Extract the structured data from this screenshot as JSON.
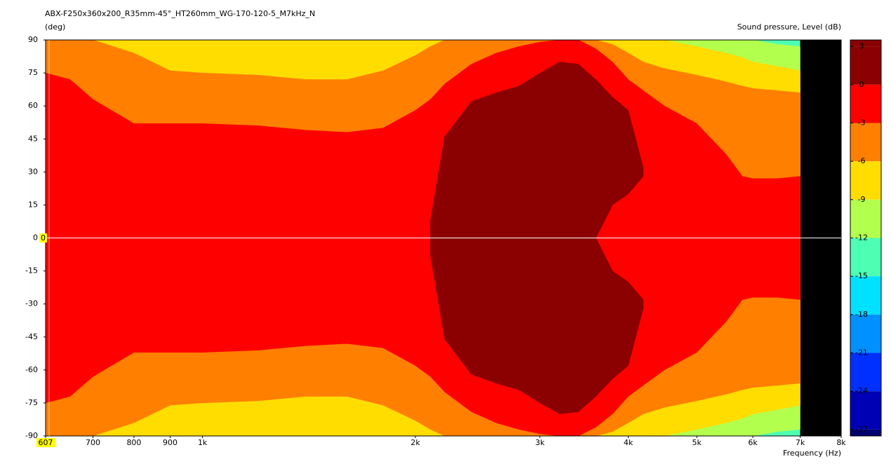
{
  "chart_data": {
    "type": "contour",
    "title": "ABX-F250x360x200_R35mm-45°_HT260mm_WG-170-120-5_M7kHz_N",
    "y_label": "(deg)",
    "x_label": "Frequency  (Hz)",
    "colorbar_label": "Sound pressure, Level  (dB)",
    "log_x": true,
    "symmetric": true,
    "nodata_color": "#000000",
    "xlim": [
      600,
      8000
    ],
    "xticks": [
      600,
      700,
      800,
      900,
      {
        "value": 1000,
        "label": "1k"
      },
      {
        "value": 2000,
        "label": "2k"
      },
      {
        "value": 3000,
        "label": "3k"
      },
      {
        "value": 4000,
        "label": "4k"
      },
      {
        "value": 5000,
        "label": "5k"
      },
      {
        "value": 6000,
        "label": "6k"
      },
      {
        "value": 7000,
        "label": "7k"
      },
      {
        "value": 8000,
        "label": "8k"
      }
    ],
    "ylim": [
      -90,
      90
    ],
    "yticks": [
      90,
      75,
      60,
      45,
      30,
      15,
      0,
      -15,
      -30,
      -45,
      -60,
      -75,
      -90
    ],
    "x": [
      600,
      650,
      700,
      800,
      900,
      1000,
      1200,
      1400,
      1600,
      1800,
      2000,
      2100,
      2200,
      2400,
      2600,
      2800,
      3000,
      3200,
      3400,
      3600,
      3800,
      4000,
      4200,
      4500,
      5000,
      5500,
      5800,
      6000,
      6500,
      7000
    ],
    "contours": [
      {
        "level": -12,
        "upper": [
          90,
          90,
          90,
          90,
          90,
          90,
          90,
          90,
          90,
          90,
          90,
          90,
          90,
          90,
          90,
          90,
          90,
          90,
          90,
          90,
          90,
          90,
          90,
          90,
          90,
          90,
          90,
          90,
          88,
          87
        ]
      },
      {
        "level": -9,
        "upper": [
          90,
          90,
          90,
          90,
          90,
          90,
          90,
          90,
          90,
          90,
          90,
          90,
          90,
          90,
          90,
          90,
          90,
          90,
          90,
          90,
          90,
          90,
          90,
          90,
          87,
          84,
          82,
          80,
          78,
          76
        ]
      },
      {
        "level": -6,
        "upper": [
          90,
          90,
          90,
          84,
          76,
          75,
          74,
          72,
          72,
          76,
          83,
          87,
          90,
          90,
          90,
          90,
          90,
          90,
          90,
          90,
          88,
          84,
          80,
          77,
          74,
          71,
          69,
          68,
          67,
          66
        ]
      },
      {
        "level": -3,
        "upper": [
          75,
          72,
          63,
          52,
          52,
          52,
          51,
          49,
          48,
          50,
          58,
          63,
          70,
          79,
          84,
          87,
          89,
          90,
          90,
          86,
          80,
          72,
          67,
          60,
          52,
          38,
          28,
          27,
          27,
          28
        ]
      },
      {
        "level": 0,
        "upper": [
          null,
          null,
          null,
          null,
          null,
          null,
          null,
          null,
          null,
          null,
          null,
          8,
          46,
          62,
          66,
          69,
          75,
          80,
          79,
          72,
          64,
          58,
          32,
          null,
          null,
          null,
          null,
          null,
          null,
          null
        ],
        "lower": [
          null,
          null,
          null,
          null,
          null,
          null,
          null,
          null,
          null,
          null,
          null,
          0,
          0,
          0,
          0,
          0,
          0,
          0,
          0,
          0,
          15,
          20,
          28,
          null,
          null,
          null,
          null,
          null,
          null,
          null
        ]
      }
    ],
    "colorbar": {
      "clim": [
        -27.5,
        3.5
      ],
      "levels": [
        3,
        0,
        -3,
        -6,
        -9,
        -12,
        -15,
        -18,
        -21,
        -24,
        -27
      ],
      "colors": [
        "#8b0000",
        "#8b0000",
        "#ff0000",
        "#ff7f00",
        "#ffdd00",
        "#b3ff4d",
        "#4dffb3",
        "#00e0ff",
        "#0090ff",
        "#0030ff",
        "#0000b4",
        "#000070"
      ]
    },
    "cursor": {
      "x": 607,
      "y": 0,
      "color": "#ffff00"
    }
  }
}
